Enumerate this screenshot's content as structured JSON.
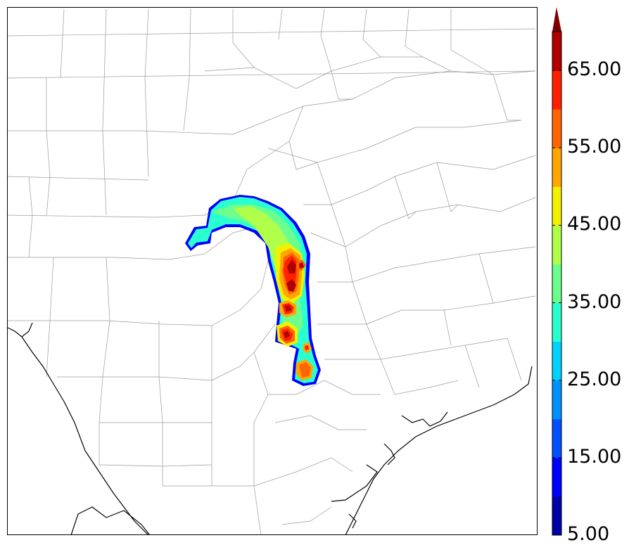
{
  "colorbar": {
    "levels": [
      5,
      10,
      15,
      20,
      25,
      30,
      35,
      40,
      45,
      50,
      55,
      60,
      65,
      70
    ],
    "colors": [
      "#0000a8",
      "#0000ff",
      "#0050ff",
      "#0090ff",
      "#00d2ff",
      "#2affcf",
      "#6cff8d",
      "#b0ff4a",
      "#f2f200",
      "#ffa600",
      "#ff6500",
      "#ff2000",
      "#b00000"
    ],
    "extend_color": "#7f0000",
    "tick_labels": [
      "5.00",
      "15.00",
      "25.00",
      "35.00",
      "45.00",
      "55.00",
      "65.00"
    ]
  },
  "map": {
    "county_line_color": "#9a9a9a",
    "coastline_color": "#000000"
  }
}
